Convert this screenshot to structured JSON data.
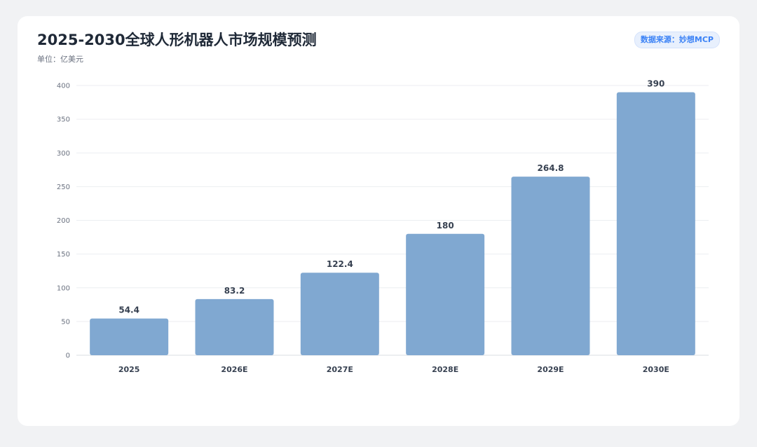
{
  "header": {
    "title": "2025-2030全球人形机器人市场规模预测",
    "subtitle": "单位：亿美元",
    "source": "数据来源：妙想MCP"
  },
  "colors": {
    "bar": "#80a8d1",
    "grid": "#eceef1",
    "source_text": "#3b82f6"
  },
  "chart_data": {
    "type": "bar",
    "categories": [
      "2025",
      "2026E",
      "2027E",
      "2028E",
      "2029E",
      "2030E"
    ],
    "values": [
      54.4,
      83.2,
      122.4,
      180,
      264.8,
      390
    ],
    "data_labels": [
      "54.4",
      "83.2",
      "122.4",
      "180",
      "264.8",
      "390"
    ],
    "title": "2025-2030全球人形机器人市场规模预测",
    "subtitle": "单位：亿美元",
    "xlabel": "",
    "ylabel": "",
    "ylim": [
      0,
      400
    ],
    "yticks": [
      0,
      50,
      100,
      150,
      200,
      250,
      300,
      350,
      400
    ],
    "grid": true,
    "legend": "none"
  }
}
